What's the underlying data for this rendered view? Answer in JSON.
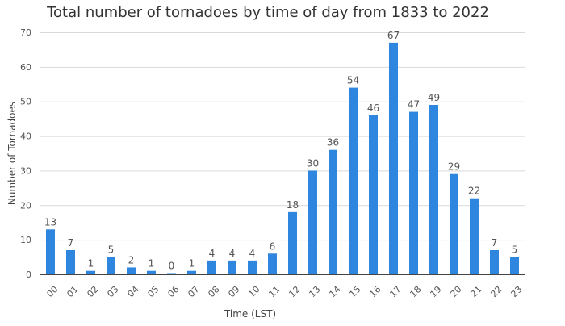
{
  "chart_data": {
    "type": "bar",
    "title": "Total number of tornadoes by time of day from 1833 to 2022",
    "xlabel": "Time (LST)",
    "ylabel": "Number of Tornadoes",
    "ylim": [
      0,
      70
    ],
    "yticks": [
      0,
      10,
      20,
      30,
      40,
      50,
      60,
      70
    ],
    "grid": true,
    "categories": [
      "00",
      "01",
      "02",
      "03",
      "04",
      "05",
      "06",
      "07",
      "08",
      "09",
      "10",
      "11",
      "12",
      "13",
      "14",
      "15",
      "16",
      "17",
      "18",
      "19",
      "20",
      "21",
      "22",
      "23"
    ],
    "values": [
      13,
      7,
      1,
      5,
      2,
      1,
      0,
      1,
      4,
      4,
      4,
      6,
      18,
      30,
      36,
      54,
      46,
      67,
      47,
      49,
      29,
      22,
      7,
      5
    ],
    "bar_color": "#2e86de"
  }
}
